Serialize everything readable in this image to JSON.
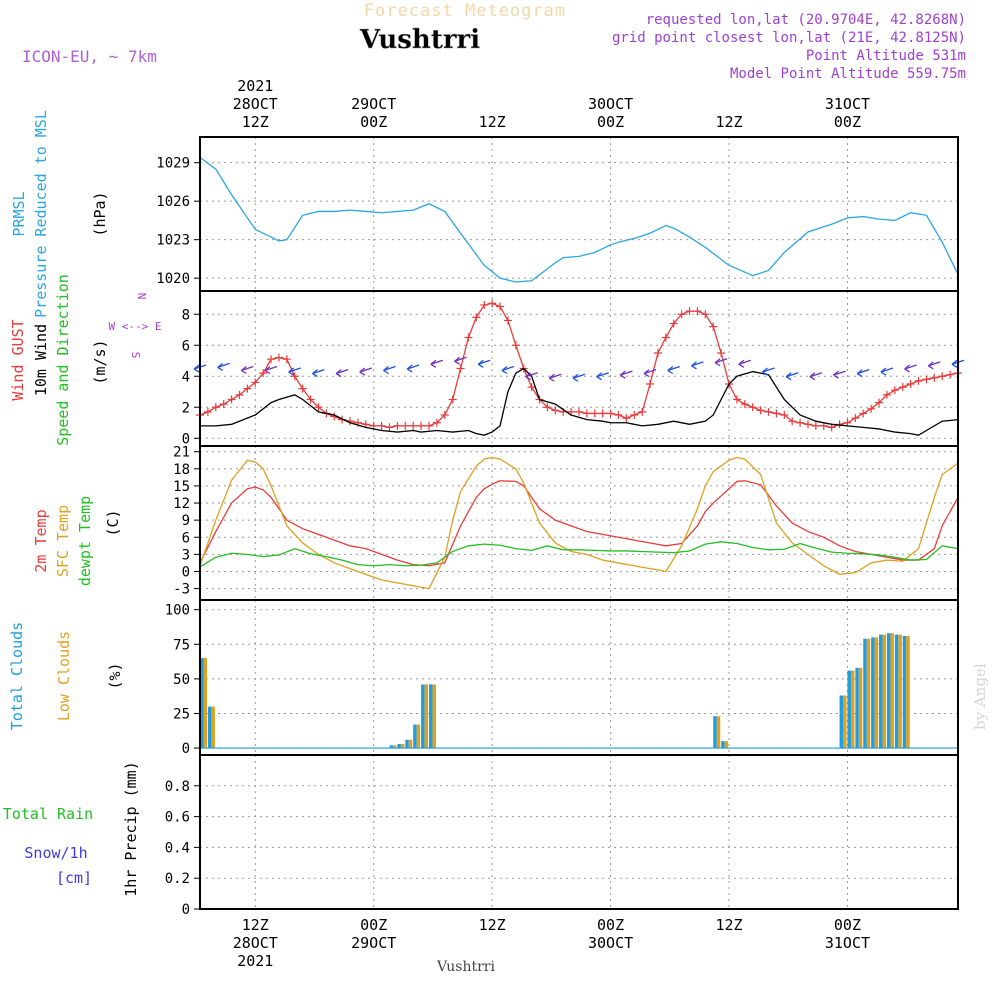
{
  "header": {
    "title": "Forecast Meteogram",
    "location": "Vushtrri",
    "model": "ICON-EU, ~ 7km",
    "requested": "requested lon,lat (20.9704E, 42.8268N)",
    "grid_point": "grid point closest lon,lat (21E, 42.8125N)",
    "point_altitude": "Point Altitude 531m",
    "model_altitude": "Model Point Altitude 559.75m"
  },
  "footer": {
    "location": "Vushtrri",
    "watermark": "by Angel"
  },
  "time_axis": {
    "start_hour": 0,
    "end_hour": 96,
    "top_labels": [
      {
        "hour": 7,
        "lines": [
          "2021",
          "28OCT",
          "12Z"
        ]
      },
      {
        "hour": 22,
        "lines": [
          "29OCT",
          "00Z"
        ]
      },
      {
        "hour": 37,
        "lines": [
          "12Z"
        ]
      },
      {
        "hour": 52,
        "lines": [
          "30OCT",
          "00Z"
        ]
      },
      {
        "hour": 67,
        "lines": [
          "12Z"
        ]
      },
      {
        "hour": 82,
        "lines": [
          "31OCT",
          "00Z"
        ]
      }
    ],
    "bottom_labels": [
      {
        "hour": 7,
        "lines": [
          "12Z",
          "28OCT",
          "2021"
        ]
      },
      {
        "hour": 22,
        "lines": [
          "00Z",
          "29OCT"
        ]
      },
      {
        "hour": 37,
        "lines": [
          "12Z"
        ]
      },
      {
        "hour": 52,
        "lines": [
          "00Z",
          "30OCT"
        ]
      },
      {
        "hour": 67,
        "lines": [
          "12Z"
        ]
      },
      {
        "hour": 82,
        "lines": [
          "00Z",
          "31OCT"
        ]
      }
    ]
  },
  "colors": {
    "pressure": "#2aa6e0",
    "gust": "#e83c3c",
    "wind": "#000000",
    "temp2m": "#e83c3c",
    "sfc": "#e0a020",
    "dewpt": "#22c022",
    "total_clouds": "#1e9ee0",
    "low_clouds": "#e0a020",
    "rain": "#22c022",
    "snow": "#3c3ce0",
    "annot": "#a040d0"
  },
  "chart_data": [
    {
      "type": "line",
      "id": "pressure",
      "ylabel_lines": [
        "PRMSL",
        "Pressure Reduced to MSL"
      ],
      "unit": "(hPa)",
      "ylim": [
        1019,
        1031
      ],
      "yticks": [
        1020,
        1023,
        1026,
        1029
      ],
      "series": [
        {
          "name": "PRMSL",
          "color_key": "pressure",
          "x": [
            0,
            2,
            4,
            7,
            10,
            11,
            13,
            15,
            17,
            19,
            21,
            23,
            25,
            27,
            29,
            31,
            33,
            36,
            38,
            40,
            42,
            45,
            46,
            48,
            50,
            52,
            53,
            55,
            57,
            59,
            60,
            62,
            64,
            67,
            70,
            72,
            74,
            77,
            80,
            82,
            84,
            86,
            88,
            90,
            92,
            94,
            96
          ],
          "values": [
            1029.4,
            1028.5,
            1026.5,
            1023.8,
            1022.9,
            1023.0,
            1024.9,
            1025.2,
            1025.2,
            1025.3,
            1025.2,
            1025.1,
            1025.2,
            1025.3,
            1025.8,
            1025.2,
            1023.5,
            1021.0,
            1020.0,
            1019.7,
            1019.8,
            1021.2,
            1021.6,
            1021.7,
            1022.0,
            1022.6,
            1022.8,
            1023.1,
            1023.5,
            1024.1,
            1023.9,
            1023.2,
            1022.4,
            1021.0,
            1020.2,
            1020.6,
            1022.0,
            1023.6,
            1024.2,
            1024.7,
            1024.8,
            1024.6,
            1024.5,
            1025.1,
            1024.9,
            1022.8,
            1020.3
          ]
        }
      ]
    },
    {
      "type": "line",
      "id": "wind",
      "ylabel_lines": [
        "Wind GUST",
        "10m Wind",
        "Speed and Direction"
      ],
      "unit": "(m/s)",
      "compass": "N, W <--> E, S",
      "ylim": [
        -0.5,
        9.5
      ],
      "yticks": [
        0,
        2,
        4,
        6,
        8
      ],
      "series": [
        {
          "name": "Wind GUST",
          "color_key": "gust",
          "marker": "+",
          "x": [
            0,
            1,
            2,
            3,
            4,
            5,
            6,
            7,
            8,
            9,
            10,
            11,
            12,
            13,
            14,
            15,
            16,
            17,
            18,
            19,
            20,
            21,
            22,
            23,
            24,
            25,
            26,
            27,
            28,
            29,
            30,
            31,
            32,
            33,
            34,
            35,
            36,
            37,
            38,
            39,
            40,
            41,
            42,
            43,
            44,
            45,
            46,
            47,
            48,
            49,
            50,
            51,
            52,
            53,
            54,
            55,
            56,
            57,
            58,
            59,
            60,
            61,
            62,
            63,
            64,
            65,
            66,
            67,
            68,
            69,
            70,
            71,
            72,
            73,
            74,
            75,
            76,
            77,
            78,
            79,
            80,
            81,
            82,
            83,
            84,
            85,
            86,
            87,
            88,
            89,
            90,
            91,
            92,
            93,
            94,
            95,
            96
          ],
          "values": [
            1.5,
            1.7,
            2.0,
            2.2,
            2.5,
            2.8,
            3.2,
            3.6,
            4.2,
            5.1,
            5.2,
            5.1,
            4.0,
            3.2,
            2.5,
            2.0,
            1.6,
            1.4,
            1.2,
            1.1,
            1.0,
            0.9,
            0.8,
            0.8,
            0.7,
            0.8,
            0.8,
            0.8,
            0.8,
            0.8,
            1.0,
            1.5,
            2.5,
            4.5,
            6.5,
            7.8,
            8.6,
            8.7,
            8.5,
            7.6,
            6.0,
            4.5,
            3.3,
            2.5,
            2.0,
            1.8,
            1.7,
            1.7,
            1.7,
            1.6,
            1.6,
            1.6,
            1.6,
            1.5,
            1.3,
            1.5,
            1.7,
            3.5,
            5.5,
            6.5,
            7.4,
            8.0,
            8.2,
            8.2,
            8.0,
            7.2,
            5.5,
            3.5,
            2.5,
            2.2,
            2.0,
            1.8,
            1.7,
            1.6,
            1.5,
            1.1,
            1.0,
            0.9,
            0.8,
            0.8,
            0.7,
            0.9,
            1.0,
            1.3,
            1.6,
            1.9,
            2.3,
            2.8,
            3.1,
            3.3,
            3.5,
            3.7,
            3.8,
            3.9,
            4.0,
            4.1,
            4.2
          ]
        },
        {
          "name": "10m Wind",
          "color_key": "wind",
          "x": [
            0,
            2,
            4,
            7,
            9,
            10,
            12,
            13,
            15,
            17,
            19,
            21,
            23,
            25,
            27,
            28,
            30,
            32,
            34,
            35,
            36,
            37,
            38,
            39,
            40,
            41,
            42,
            43,
            45,
            47,
            49,
            51,
            52,
            54,
            55,
            56,
            58,
            60,
            62,
            64,
            65,
            66,
            67,
            68,
            70,
            72,
            74,
            76,
            78,
            80,
            82,
            84,
            86,
            88,
            90,
            91,
            92,
            94,
            96
          ],
          "values": [
            0.8,
            0.8,
            0.9,
            1.5,
            2.3,
            2.5,
            2.8,
            2.5,
            1.7,
            1.5,
            1.0,
            0.7,
            0.5,
            0.4,
            0.5,
            0.4,
            0.5,
            0.4,
            0.5,
            0.3,
            0.2,
            0.4,
            0.8,
            3.0,
            4.2,
            4.5,
            4.0,
            2.5,
            2.2,
            1.5,
            1.2,
            1.1,
            1.0,
            1.0,
            0.9,
            0.8,
            0.9,
            1.1,
            0.9,
            1.1,
            1.5,
            2.5,
            3.5,
            4.0,
            4.3,
            4.1,
            2.5,
            1.5,
            1.1,
            0.9,
            0.8,
            0.7,
            0.6,
            0.4,
            0.3,
            0.2,
            0.5,
            1.1,
            1.2
          ]
        },
        {
          "name": "Speed and Direction",
          "color_key": "dewpt",
          "x": [
            0,
            3,
            6,
            9,
            12,
            15,
            18,
            21,
            24,
            27,
            30,
            33,
            36,
            39,
            42,
            45,
            48,
            51,
            54,
            57,
            60,
            63,
            66,
            69,
            72,
            75,
            78,
            81,
            84,
            87,
            90,
            93,
            96
          ],
          "values": [
            4.6,
            4.7,
            4.5,
            4.5,
            4.4,
            4.3,
            4.3,
            4.4,
            4.5,
            4.6,
            4.9,
            5.1,
            4.9,
            4.5,
            4.1,
            4.0,
            4.0,
            4.1,
            4.2,
            4.3,
            4.5,
            4.8,
            5.0,
            4.9,
            4.4,
            4.1,
            4.1,
            4.2,
            4.3,
            4.4,
            4.6,
            4.8,
            4.9
          ]
        }
      ]
    },
    {
      "type": "line",
      "id": "temperature",
      "ylabel_lines": [
        "2m Temp",
        "SFC Temp",
        "dewpt Temp"
      ],
      "unit": "(C)",
      "ylim": [
        -5,
        22
      ],
      "yticks": [
        -3,
        0,
        3,
        6,
        9,
        12,
        15,
        18,
        21
      ],
      "series": [
        {
          "name": "2m Temp",
          "color_key": "temp2m",
          "x": [
            0,
            2,
            4,
            6,
            7,
            8,
            9,
            11,
            13,
            15,
            17,
            19,
            21,
            23,
            25,
            27,
            29,
            31,
            33,
            35,
            36,
            37,
            38,
            40,
            41,
            43,
            45,
            47,
            49,
            51,
            53,
            55,
            57,
            59,
            61,
            63,
            64,
            65,
            67,
            68,
            69,
            71,
            73,
            75,
            77,
            79,
            81,
            83,
            85,
            87,
            89,
            91,
            93,
            94,
            96
          ],
          "values": [
            1.5,
            7.0,
            12.0,
            14.5,
            14.8,
            14.3,
            13.0,
            9.0,
            7.5,
            6.5,
            5.5,
            4.5,
            4.0,
            3.0,
            2.0,
            1.2,
            1.0,
            1.5,
            8.0,
            13.0,
            14.5,
            15.3,
            15.9,
            15.8,
            15.0,
            11.0,
            9.0,
            8.0,
            7.0,
            6.5,
            6.0,
            5.5,
            5.0,
            4.5,
            4.9,
            8.0,
            10.5,
            12.0,
            14.5,
            15.8,
            15.9,
            15.2,
            11.5,
            8.5,
            7.0,
            6.0,
            4.5,
            3.5,
            3.0,
            2.5,
            2.0,
            2.0,
            4.0,
            8.0,
            13.0
          ]
        },
        {
          "name": "SFC Temp",
          "color_key": "sfc",
          "x": [
            0,
            2,
            4,
            6,
            7,
            8,
            9,
            11,
            13,
            15,
            17,
            19,
            21,
            23,
            25,
            27,
            29,
            31,
            32,
            33,
            35,
            36,
            37,
            38,
            40,
            41,
            43,
            45,
            47,
            49,
            51,
            53,
            55,
            57,
            58,
            59,
            61,
            63,
            64,
            65,
            67,
            68,
            69,
            71,
            73,
            75,
            77,
            79,
            81,
            83,
            85,
            87,
            89,
            91,
            93,
            94,
            96
          ],
          "values": [
            1.0,
            9.0,
            16.0,
            19.5,
            19.2,
            18.0,
            15.0,
            8.0,
            5.0,
            3.0,
            1.5,
            0.5,
            -0.5,
            -1.5,
            -2.0,
            -2.5,
            -3.0,
            2.5,
            9.0,
            14.0,
            18.5,
            19.7,
            20.0,
            19.7,
            18.0,
            15.5,
            8.5,
            5.0,
            3.5,
            3.0,
            2.0,
            1.5,
            1.0,
            0.5,
            0.3,
            0.0,
            4.5,
            11.0,
            15.0,
            17.5,
            19.5,
            20.0,
            19.7,
            17.0,
            8.5,
            5.0,
            3.0,
            1.0,
            -0.5,
            -0.2,
            1.5,
            2.0,
            1.8,
            4.0,
            13.0,
            17.0,
            19.0
          ]
        },
        {
          "name": "dewpt Temp",
          "color_key": "dewpt",
          "x": [
            0,
            2,
            4,
            6,
            8,
            10,
            12,
            14,
            16,
            18,
            20,
            22,
            24,
            26,
            28,
            30,
            32,
            34,
            36,
            38,
            40,
            42,
            44,
            46,
            48,
            50,
            52,
            54,
            56,
            58,
            60,
            62,
            64,
            66,
            68,
            70,
            72,
            74,
            76,
            78,
            80,
            82,
            84,
            86,
            88,
            90,
            92,
            94,
            96
          ],
          "values": [
            0.8,
            2.5,
            3.2,
            3.0,
            2.6,
            2.9,
            4.0,
            3.1,
            2.6,
            2.0,
            1.2,
            1.0,
            1.2,
            1.0,
            1.1,
            1.5,
            3.5,
            4.5,
            4.8,
            4.6,
            4.0,
            3.7,
            4.5,
            3.8,
            3.8,
            3.7,
            3.6,
            3.6,
            3.5,
            3.4,
            3.3,
            3.6,
            4.8,
            5.2,
            4.9,
            4.2,
            3.8,
            3.9,
            4.9,
            4.1,
            3.4,
            3.2,
            3.1,
            2.9,
            2.5,
            2.0,
            2.1,
            4.5,
            4.0
          ]
        }
      ]
    },
    {
      "type": "bar",
      "id": "clouds",
      "ylabel_lines": [
        "Total Clouds",
        "Low Clouds"
      ],
      "unit": "(%)",
      "ylim": [
        -5,
        107
      ],
      "yticks": [
        0,
        25,
        50,
        75,
        100
      ],
      "series": [
        {
          "name": "Total Clouds",
          "color_key": "total_clouds",
          "x": [
            0,
            1,
            24,
            25,
            26,
            27,
            28,
            29,
            65,
            66,
            81,
            82,
            83,
            84,
            85,
            86,
            87,
            88,
            89
          ],
          "values": [
            65,
            30,
            2,
            3,
            6,
            17,
            46,
            46,
            23,
            5,
            38,
            56,
            58,
            79,
            80,
            82,
            83,
            82,
            81
          ]
        },
        {
          "name": "Low Clouds",
          "color_key": "low_clouds",
          "x": [
            0,
            1,
            24,
            25,
            26,
            27,
            28,
            29,
            65,
            66,
            81,
            82,
            83,
            84,
            85,
            86,
            87,
            88,
            89
          ],
          "values": [
            65,
            30,
            2,
            3,
            6,
            17,
            46,
            46,
            23,
            5,
            38,
            56,
            58,
            79,
            80,
            82,
            83,
            82,
            81
          ]
        }
      ]
    },
    {
      "type": "line",
      "id": "precip",
      "ylabel_lines": [
        "Total Rain",
        "Snow/1h",
        "[cm]"
      ],
      "unit": "1hr Precip (mm)",
      "ylim": [
        0,
        1.0
      ],
      "yticks": [
        0,
        0.2,
        0.4,
        0.6,
        0.8
      ],
      "series": [
        {
          "name": "Total Rain",
          "color_key": "rain",
          "x": [
            0,
            96
          ],
          "values": [
            0,
            0
          ]
        },
        {
          "name": "Snow/1h",
          "color_key": "snow",
          "x": [
            0,
            96
          ],
          "values": [
            0,
            0
          ]
        }
      ]
    }
  ]
}
